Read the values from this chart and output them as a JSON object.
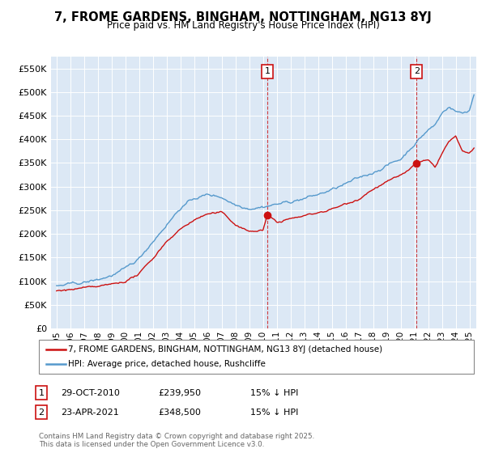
{
  "title": "7, FROME GARDENS, BINGHAM, NOTTINGHAM, NG13 8YJ",
  "subtitle": "Price paid vs. HM Land Registry's House Price Index (HPI)",
  "ylim": [
    0,
    575000
  ],
  "yticks": [
    0,
    50000,
    100000,
    150000,
    200000,
    250000,
    300000,
    350000,
    400000,
    450000,
    500000,
    550000
  ],
  "plot_bg": "#dce8f5",
  "red_color": "#cc1111",
  "blue_color": "#5599cc",
  "legend_red": "7, FROME GARDENS, BINGHAM, NOTTINGHAM, NG13 8YJ (detached house)",
  "legend_blue": "HPI: Average price, detached house, Rushcliffe",
  "footnote": "Contains HM Land Registry data © Crown copyright and database right 2025.\nThis data is licensed under the Open Government Licence v3.0.",
  "hpi_keypoints": [
    [
      0,
      90000
    ],
    [
      12,
      93000
    ],
    [
      24,
      97000
    ],
    [
      36,
      103000
    ],
    [
      48,
      112000
    ],
    [
      60,
      125000
    ],
    [
      72,
      148000
    ],
    [
      84,
      185000
    ],
    [
      96,
      220000
    ],
    [
      108,
      255000
    ],
    [
      120,
      275000
    ],
    [
      132,
      283000
    ],
    [
      144,
      278000
    ],
    [
      156,
      262000
    ],
    [
      168,
      255000
    ],
    [
      180,
      258000
    ],
    [
      192,
      263000
    ],
    [
      204,
      268000
    ],
    [
      216,
      275000
    ],
    [
      228,
      283000
    ],
    [
      240,
      293000
    ],
    [
      252,
      305000
    ],
    [
      264,
      318000
    ],
    [
      276,
      330000
    ],
    [
      288,
      345000
    ],
    [
      300,
      358000
    ],
    [
      312,
      390000
    ],
    [
      318,
      405000
    ],
    [
      324,
      420000
    ],
    [
      330,
      430000
    ],
    [
      336,
      455000
    ],
    [
      342,
      470000
    ],
    [
      348,
      460000
    ],
    [
      354,
      455000
    ],
    [
      360,
      462000
    ],
    [
      364,
      495000
    ]
  ],
  "red_keypoints": [
    [
      0,
      80000
    ],
    [
      12,
      82000
    ],
    [
      24,
      85000
    ],
    [
      36,
      88000
    ],
    [
      48,
      93000
    ],
    [
      60,
      100000
    ],
    [
      72,
      115000
    ],
    [
      84,
      148000
    ],
    [
      96,
      185000
    ],
    [
      108,
      210000
    ],
    [
      120,
      230000
    ],
    [
      132,
      242000
    ],
    [
      144,
      245000
    ],
    [
      156,
      220000
    ],
    [
      168,
      205000
    ],
    [
      180,
      208000
    ],
    [
      184,
      239950
    ],
    [
      192,
      225000
    ],
    [
      204,
      232000
    ],
    [
      216,
      238000
    ],
    [
      228,
      245000
    ],
    [
      240,
      252000
    ],
    [
      264,
      275000
    ],
    [
      276,
      295000
    ],
    [
      288,
      310000
    ],
    [
      300,
      323000
    ],
    [
      314,
      348500
    ],
    [
      318,
      352000
    ],
    [
      324,
      355000
    ],
    [
      330,
      340000
    ],
    [
      336,
      370000
    ],
    [
      342,
      395000
    ],
    [
      348,
      405000
    ],
    [
      354,
      375000
    ],
    [
      360,
      368000
    ],
    [
      364,
      380000
    ]
  ],
  "marker1_idx": 184,
  "marker2_idx": 314,
  "marker1_val": 239950,
  "marker2_val": 348500,
  "n_months": 365,
  "start_year": 1995
}
